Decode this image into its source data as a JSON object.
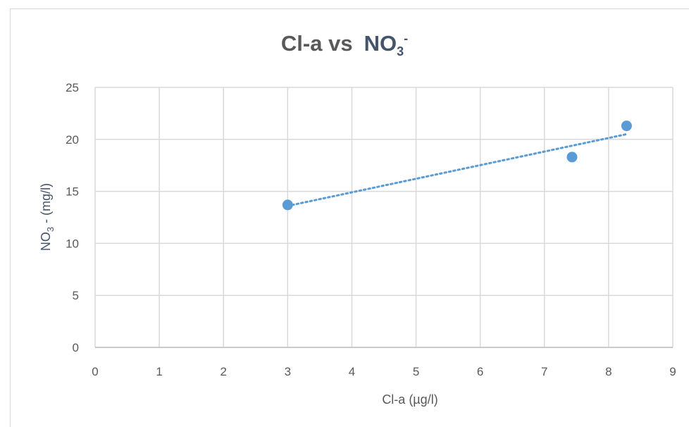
{
  "chart_data": {
    "type": "scatter",
    "title": "Cl-a vs  NO3-",
    "title_parts": {
      "a": "Cl-a vs",
      "b_main": "NO",
      "b_sub": "3",
      "b_sup": "-"
    },
    "xlabel": "Cl-a  (µg/l)",
    "ylabel": "NO3 - (mg/l)",
    "ylabel_parts": {
      "main": "NO",
      "sub": "3",
      "rest": " - (mg/l)"
    },
    "xlim": [
      0,
      9
    ],
    "ylim": [
      0,
      25
    ],
    "xticks": [
      "0",
      "1",
      "2",
      "3",
      "4",
      "5",
      "6",
      "7",
      "8",
      "9"
    ],
    "yticks": [
      "0",
      "5",
      "10",
      "15",
      "20",
      "25"
    ],
    "grid": true,
    "series": [
      {
        "x": [
          3.0,
          7.43,
          8.28
        ],
        "y": [
          13.7,
          18.3,
          21.3
        ],
        "color": "#5b9bd5"
      }
    ],
    "trendline": {
      "type": "linear",
      "style": "dotted",
      "color": "#5b9bd5",
      "x": [
        3.0,
        8.28
      ],
      "y": [
        13.6,
        20.5
      ]
    }
  }
}
